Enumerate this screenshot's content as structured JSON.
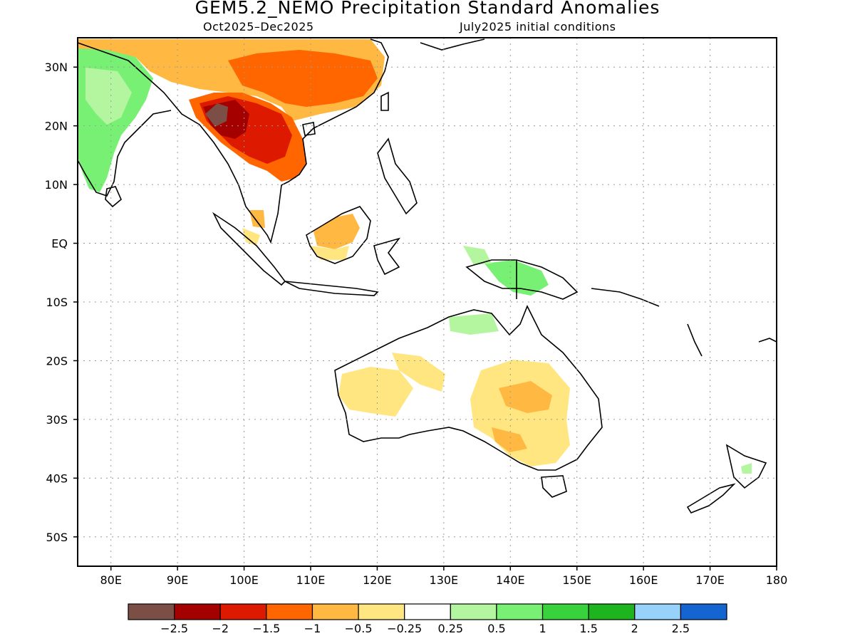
{
  "title": "GEM5.2_NEMO Precipitation Standard Anomalies",
  "subtitle_left": "Oct2025–Dec2025",
  "subtitle_right": "July2025 initial conditions",
  "map": {
    "region": "Indo-Pacific / Maritime Continent / Australia",
    "lat_labels": [
      "30N",
      "20N",
      "10N",
      "EQ",
      "10S",
      "20S",
      "30S",
      "40S",
      "50S"
    ],
    "lon_labels": [
      "80E",
      "90E",
      "100E",
      "110E",
      "120E",
      "130E",
      "140E",
      "150E",
      "160E",
      "170E",
      "180"
    ],
    "lat_range": [
      -55,
      35
    ],
    "lon_range": [
      75,
      180
    ],
    "grid": "dotted",
    "anomaly_regions": [
      {
        "area": "Myanmar / Thailand / Indochina",
        "category": "-2.5 to -1"
      },
      {
        "area": "Southern China",
        "category": "-1.5 to -0.5"
      },
      {
        "area": "Northern Borneo",
        "category": "-1 to -0.25"
      },
      {
        "area": "Western and interior Australia",
        "category": "-0.5 to -0.25"
      },
      {
        "area": "India",
        "category": "0.25 to 1"
      },
      {
        "area": "New Guinea",
        "category": "0.25 to 1"
      }
    ]
  },
  "colorbar": {
    "colors": [
      "#7b4f45",
      "#a50000",
      "#dd1a00",
      "#ff6600",
      "#ffb841",
      "#ffe680",
      "#ffffff",
      "#b4f5a0",
      "#78f073",
      "#37d23c",
      "#1eb41e",
      "#96d2fa",
      "#1464d2"
    ],
    "labels": [
      "−2.5",
      "−2",
      "−1.5",
      "−1",
      "−0.5",
      "−0.25",
      "0.25",
      "0.5",
      "1",
      "1.5",
      "2",
      "2.5"
    ]
  }
}
